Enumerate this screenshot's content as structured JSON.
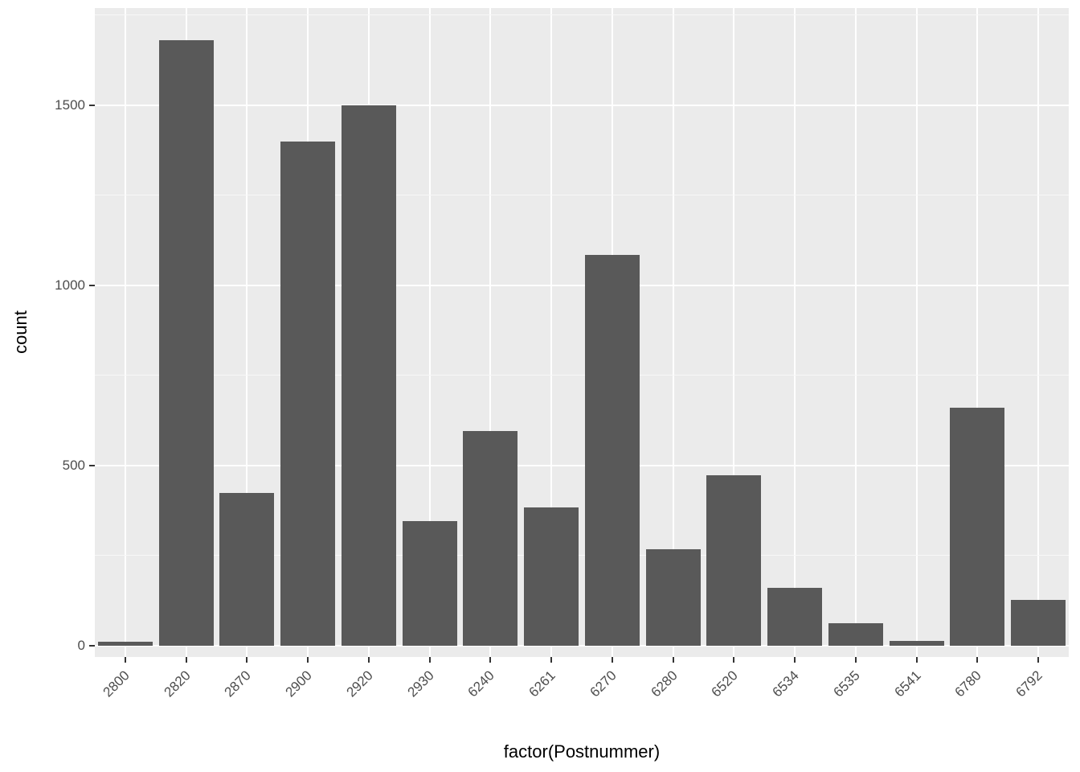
{
  "chart_data": {
    "type": "bar",
    "title": "",
    "xlabel": "factor(Postnummer)",
    "ylabel": "count",
    "categories": [
      "2800",
      "2820",
      "2870",
      "2900",
      "2920",
      "2930",
      "6240",
      "6261",
      "6270",
      "6280",
      "6520",
      "6534",
      "6535",
      "6541",
      "6780",
      "6792"
    ],
    "values": [
      12,
      1680,
      425,
      1400,
      1500,
      345,
      595,
      383,
      1085,
      267,
      474,
      160,
      62,
      13,
      660,
      127
    ],
    "ylim": [
      0,
      1770
    ],
    "yticks": [
      0,
      500,
      1000,
      1500
    ],
    "yticks_minor": [
      250,
      750,
      1250,
      1750
    ],
    "grid": true,
    "legend": false,
    "bar_width_fraction": 0.9,
    "colors": {
      "bar_fill": "#595959",
      "panel_background": "#EBEBEB",
      "grid_major": "#FFFFFF",
      "grid_minor": "#F7F7F7",
      "tick_text": "#4D4D4D",
      "axis_title": "#000000",
      "tick_mark": "#333333"
    }
  }
}
